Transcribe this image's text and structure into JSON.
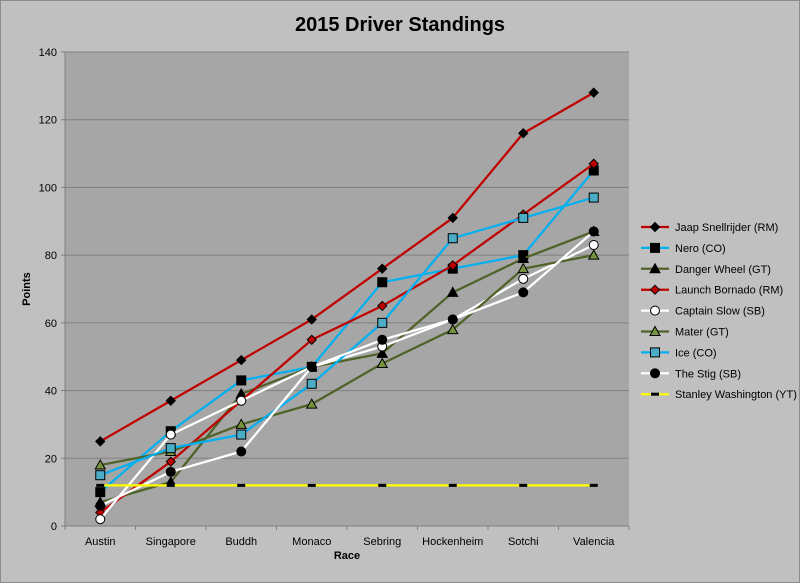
{
  "chart_data": {
    "type": "line",
    "title": "2015 Driver Standings",
    "xlabel": "Race",
    "ylabel": "Points",
    "ylim": [
      0,
      140
    ],
    "yticks": [
      0,
      20,
      40,
      60,
      80,
      100,
      120,
      140
    ],
    "grid": "horizontal",
    "legend": "right",
    "categories": [
      "Austin",
      "Singapore",
      "Buddh",
      "Monaco",
      "Sebring",
      "Hockenheim",
      "Sotchi",
      "Valencia"
    ],
    "series": [
      {
        "name": "Jaap Snellrijder (RM)",
        "color": "#c00000",
        "marker": "diamond",
        "markerFill": "#000000",
        "values": [
          25,
          37,
          49,
          61,
          76,
          91,
          116,
          128
        ]
      },
      {
        "name": "Nero (CO)",
        "color": "#00b0f0",
        "marker": "square",
        "markerFill": "#000000",
        "values": [
          10,
          28,
          43,
          47,
          72,
          76,
          80,
          105
        ]
      },
      {
        "name": "Danger Wheel (GT)",
        "color": "#4f6228",
        "marker": "triangle",
        "markerFill": "#000000",
        "values": [
          7,
          13,
          39,
          47,
          51,
          69,
          79,
          87
        ]
      },
      {
        "name": "Launch Bornado (RM)",
        "color": "#c00000",
        "marker": "diamond",
        "markerFill": "#c00000",
        "values": [
          4,
          19,
          37,
          55,
          65,
          77,
          92,
          107
        ]
      },
      {
        "name": "Captain Slow (SB)",
        "color": "#ffffff",
        "marker": "circle",
        "markerFill": "#ffffff",
        "values": [
          2,
          27,
          37,
          47,
          53,
          61,
          73,
          83
        ]
      },
      {
        "name": "Mater (GT)",
        "color": "#4f6228",
        "marker": "triangle",
        "markerFill": "#76923c",
        "values": [
          18,
          22,
          30,
          36,
          48,
          58,
          76,
          80
        ]
      },
      {
        "name": "Ice (CO)",
        "color": "#00b0f0",
        "marker": "square",
        "markerFill": "#4bacc6",
        "values": [
          15,
          23,
          27,
          42,
          60,
          85,
          91,
          97
        ]
      },
      {
        "name": "The Stig (SB)",
        "color": "#ffffff",
        "marker": "circle",
        "markerFill": "#000000",
        "values": [
          6,
          16,
          22,
          47,
          55,
          61,
          69,
          87
        ]
      },
      {
        "name": "Stanley Washington (YT)",
        "color": "#ffff00",
        "marker": "dash",
        "markerFill": "#000000",
        "values": [
          12,
          12,
          12,
          12,
          12,
          12,
          12,
          12
        ]
      }
    ]
  }
}
